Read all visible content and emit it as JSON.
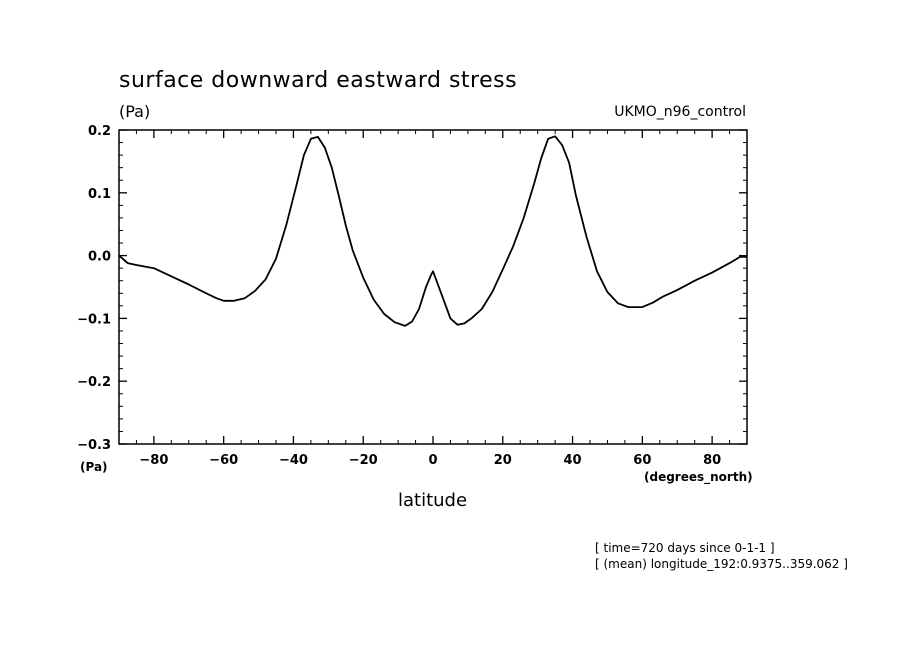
{
  "page": {
    "title": "surface downward eastward stress",
    "units_top": "(Pa)",
    "dataset": "UKMO_n96_control",
    "units_bottom": "(Pa)",
    "x_units": "(degrees_north)",
    "x_label": "latitude",
    "notes": [
      "[ time=720 days since 0-1-1 ]",
      "[ (mean) longitude_192:0.9375..359.062 ]"
    ]
  },
  "chart_data": {
    "type": "line",
    "title": "surface downward eastward stress",
    "xlabel": "latitude",
    "ylabel": "(Pa)",
    "xlim": [
      -90,
      90
    ],
    "ylim": [
      -0.3,
      0.2
    ],
    "grid": false,
    "x_ticks": [
      -80,
      -60,
      -40,
      -20,
      0,
      20,
      40,
      60,
      80
    ],
    "x_tick_labels": [
      "−80",
      "−60",
      "−40",
      "−20",
      "0",
      "20",
      "40",
      "60",
      "80"
    ],
    "y_ticks": [
      -0.3,
      -0.2,
      -0.1,
      0.0,
      0.1,
      0.2
    ],
    "y_tick_labels": [
      "−0.3",
      "−0.2",
      "−0.1",
      "0.0",
      "0.1",
      "0.2"
    ],
    "series": [
      {
        "color": "#000000",
        "x": [
          -90,
          -87.5,
          -85,
          -80,
          -75,
          -70,
          -65,
          -62,
          -60,
          -57,
          -54,
          -51,
          -48,
          -45,
          -42,
          -39,
          -37,
          -35,
          -33,
          -31,
          -29,
          -27,
          -25,
          -23,
          -20,
          -17,
          -14,
          -11,
          -8,
          -6,
          -4,
          -2,
          -0.5,
          0,
          1,
          3,
          5,
          7,
          9,
          11,
          14,
          17,
          20,
          23,
          26,
          29,
          31,
          33,
          35,
          37,
          39,
          41,
          44,
          47,
          50,
          53,
          56,
          58,
          60,
          63,
          66,
          70,
          75,
          80,
          85,
          88,
          90
        ],
        "y": [
          0.0,
          -0.012,
          -0.015,
          -0.02,
          -0.033,
          -0.046,
          -0.06,
          -0.068,
          -0.072,
          -0.072,
          -0.068,
          -0.056,
          -0.038,
          -0.005,
          0.05,
          0.115,
          0.16,
          0.186,
          0.189,
          0.172,
          0.14,
          0.095,
          0.048,
          0.008,
          -0.035,
          -0.07,
          -0.093,
          -0.106,
          -0.112,
          -0.105,
          -0.085,
          -0.05,
          -0.03,
          -0.025,
          -0.04,
          -0.07,
          -0.1,
          -0.11,
          -0.108,
          -0.1,
          -0.085,
          -0.058,
          -0.022,
          0.015,
          0.06,
          0.115,
          0.155,
          0.186,
          0.19,
          0.176,
          0.148,
          0.095,
          0.03,
          -0.025,
          -0.058,
          -0.076,
          -0.082,
          -0.082,
          -0.082,
          -0.075,
          -0.065,
          -0.055,
          -0.04,
          -0.027,
          -0.012,
          -0.002,
          -0.002
        ]
      }
    ]
  }
}
